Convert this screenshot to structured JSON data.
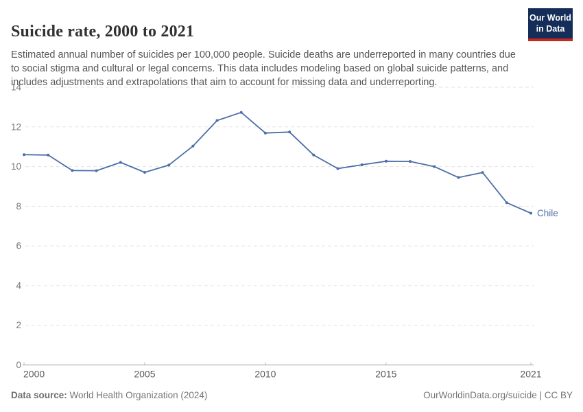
{
  "header": {
    "title": "Suicide rate, 2000 to 2021",
    "subtitle": "Estimated annual number of suicides per 100,000 people. Suicide deaths are underreported in many countries due to social stigma and cultural or legal concerns. This data includes modeling based on global suicide patterns, and includes adjustments and extrapolations that aim to account for missing data and underreporting."
  },
  "logo": {
    "line1": "Our World",
    "line2": "in Data",
    "bg_color": "#152e59",
    "accent_color": "#c2281f"
  },
  "chart_data": {
    "type": "line",
    "title": "Suicide rate, 2000 to 2021",
    "xlabel": "",
    "ylabel": "",
    "ylim": [
      0,
      14
    ],
    "yticks": [
      0,
      2,
      4,
      6,
      8,
      10,
      12,
      14
    ],
    "xticks": [
      2000,
      2005,
      2010,
      2015,
      2021
    ],
    "grid": true,
    "legend_position": "end-of-line-label",
    "x": [
      2000,
      2001,
      2002,
      2003,
      2004,
      2005,
      2006,
      2007,
      2008,
      2009,
      2010,
      2011,
      2012,
      2013,
      2014,
      2015,
      2016,
      2017,
      2018,
      2019,
      2020,
      2021
    ],
    "series": [
      {
        "name": "Chile",
        "color": "#4d6ea8",
        "values": [
          10.6,
          10.58,
          9.8,
          9.79,
          10.21,
          9.71,
          10.07,
          11.03,
          12.32,
          12.73,
          11.69,
          11.74,
          10.58,
          9.9,
          10.09,
          10.27,
          10.26,
          10.0,
          9.45,
          9.7,
          8.18,
          7.65
        ]
      }
    ]
  },
  "footer": {
    "source_label": "Data source:",
    "source_value": " World Health Organization (2024)",
    "right_text": "OurWorldinData.org/suicide | CC BY"
  },
  "colors": {
    "gridline": "#e3e3e3",
    "axis_line": "#999999",
    "tick_mark": "#bdbdbd",
    "y_tick_label": "#787878",
    "x_tick_label": "#5b5b5b",
    "title": "#313131",
    "subtitle": "#555555",
    "footer": "#757575"
  }
}
